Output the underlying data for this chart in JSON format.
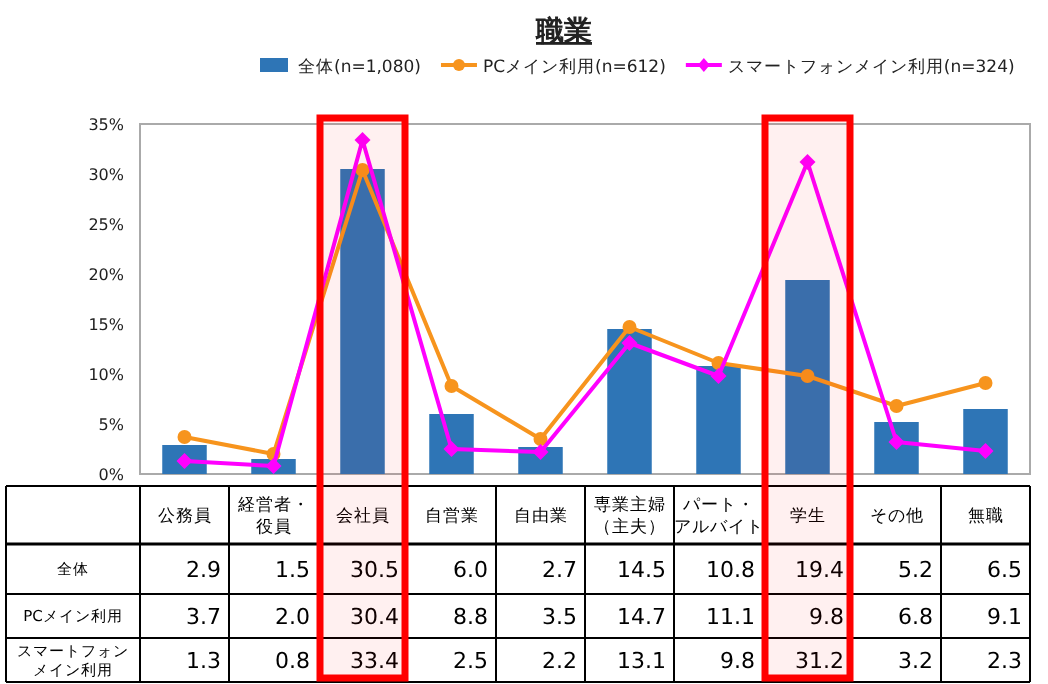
{
  "chart_data": {
    "type": "bar",
    "title": "職業",
    "categories": [
      "公務員",
      "経営者・役員",
      "会社員",
      "自営業",
      "自由業",
      "専業主婦（主夫）",
      "パート・アルバイト",
      "学生",
      "その他",
      "無職"
    ],
    "series": [
      {
        "name": "全体(n=1,080)",
        "color": "#2e75b6",
        "values": [
          2.9,
          1.5,
          30.5,
          6.0,
          2.7,
          14.5,
          10.8,
          19.4,
          5.2,
          6.5
        ],
        "value_labels": [
          "2.9",
          "1.5",
          "30.5",
          "6.0",
          "2.7",
          "14.5",
          "10.8",
          "19.4",
          "5.2",
          "6.5"
        ]
      },
      {
        "name": "PCメイン利用(n=612)",
        "type": "line",
        "marker": "circle",
        "color": "#f7941d",
        "values": [
          3.7,
          2.0,
          30.4,
          8.8,
          3.5,
          14.7,
          11.1,
          9.8,
          6.8,
          9.1
        ],
        "value_labels": [
          "3.7",
          "2.0",
          "30.4",
          "8.8",
          "3.5",
          "14.7",
          "11.1",
          "9.8",
          "6.8",
          "9.1"
        ]
      },
      {
        "name": "スマートフォンメイン利用(n=324)",
        "type": "line",
        "marker": "diamond",
        "color": "#ff00ff",
        "values": [
          1.3,
          0.8,
          33.4,
          2.5,
          2.2,
          13.1,
          9.8,
          31.2,
          3.2,
          2.3
        ],
        "value_labels": [
          "1.3",
          "0.8",
          "33.4",
          "2.5",
          "2.2",
          "13.1",
          "9.8",
          "31.2",
          "3.2",
          "2.3"
        ]
      }
    ],
    "ylim": [
      0,
      35
    ],
    "yticks": [
      {
        "value": 0,
        "label": "0%"
      },
      {
        "value": 5,
        "label": "5%"
      },
      {
        "value": 10,
        "label": "10%"
      },
      {
        "value": 15,
        "label": "15%"
      },
      {
        "value": 20,
        "label": "20%"
      },
      {
        "value": 25,
        "label": "25%"
      },
      {
        "value": 30,
        "label": "30%"
      },
      {
        "value": 35,
        "label": "35%"
      }
    ],
    "legend": "top",
    "bands": [
      {
        "axis": "x",
        "from": "会社員",
        "to": "会社員",
        "color": "#ff0000"
      },
      {
        "axis": "x",
        "from": "学生",
        "to": "学生",
        "color": "#ff0000"
      }
    ],
    "annotations": [
      "全体",
      "PCメイン利用",
      "スマートフォンメイン利用"
    ]
  }
}
